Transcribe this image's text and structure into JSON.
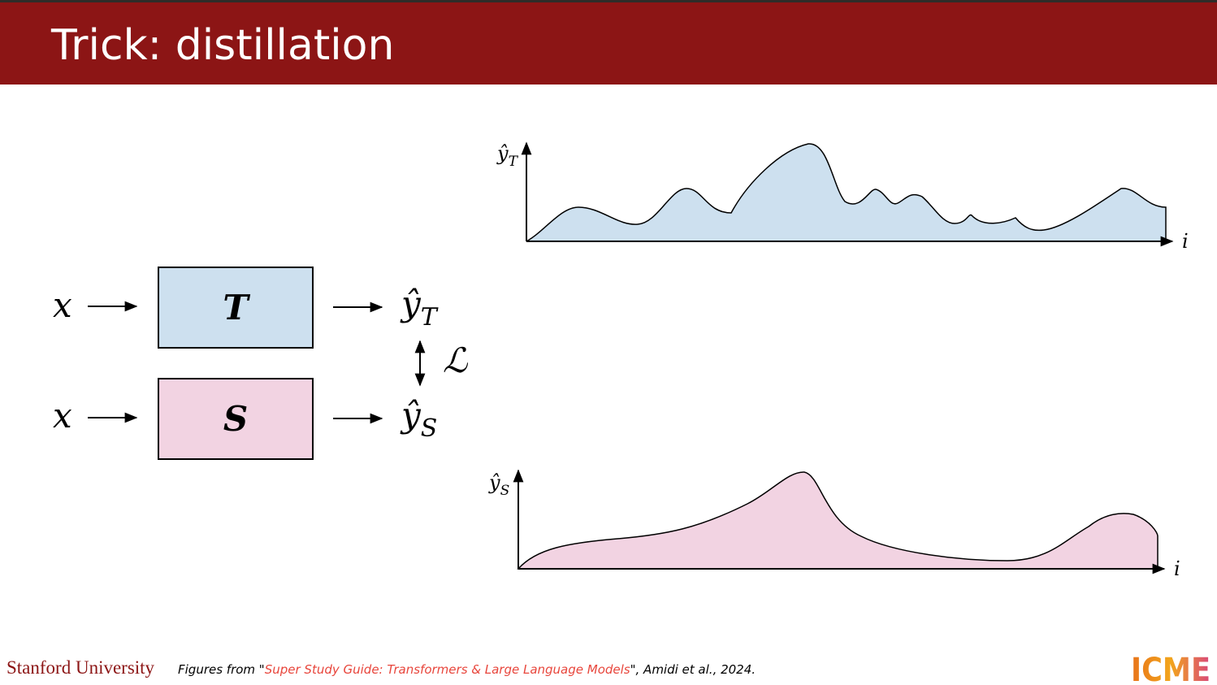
{
  "header": {
    "title": "Trick: distillation"
  },
  "diagram": {
    "teacher": {
      "input": "x",
      "model": "T",
      "output": {
        "base": "ŷ",
        "sub": "T"
      }
    },
    "student": {
      "input": "x",
      "model": "S",
      "output": {
        "base": "ŷ",
        "sub": "S"
      }
    },
    "loss": "ℒ"
  },
  "plots": [
    {
      "y_label": {
        "base": "ŷ",
        "sub": "T"
      },
      "x_label": "i"
    },
    {
      "y_label": {
        "base": "ŷ",
        "sub": "S"
      },
      "x_label": "i"
    }
  ],
  "footer": {
    "institution": "Stanford University",
    "credit_prefix": "Figures from \"",
    "credit_link": "Super Study Guide: Transformers & Large Language Models",
    "credit_suffix": "\", Amidi et al., 2024.",
    "logo": "ICME"
  }
}
